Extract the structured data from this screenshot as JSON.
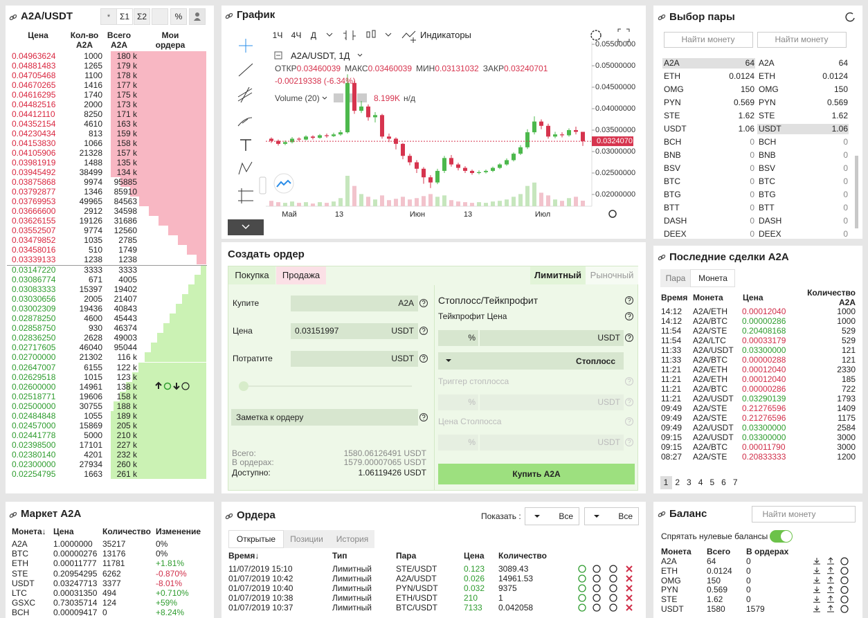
{
  "order_book": {
    "title": "A2A/USDT",
    "tabs": [
      "Σ1",
      "Σ2",
      "%"
    ],
    "headers": [
      "Цена",
      "Кол-во A2A",
      "Всего A2A",
      "Мои ордера"
    ],
    "ask_color": "#d9263f",
    "bid_color": "#2e9c2e",
    "asks": [
      [
        "0.04963624",
        "1000",
        "180 k"
      ],
      [
        "0.04881483",
        "1265",
        "179 k"
      ],
      [
        "0.04705468",
        "1100",
        "178 k"
      ],
      [
        "0.04670265",
        "1416",
        "177 k"
      ],
      [
        "0.04616295",
        "1740",
        "175 k"
      ],
      [
        "0.04482516",
        "2000",
        "173 k"
      ],
      [
        "0.04412110",
        "8250",
        "171 k"
      ],
      [
        "0.04352154",
        "4610",
        "163 k"
      ],
      [
        "0.04230434",
        "813",
        "159 k"
      ],
      [
        "0.04153830",
        "1066",
        "158 k"
      ],
      [
        "0.04105906",
        "21328",
        "157 k"
      ],
      [
        "0.03981919",
        "1488",
        "135 k"
      ],
      [
        "0.03945492",
        "38499",
        "134 k"
      ],
      [
        "0.03875868",
        "9974",
        "95885"
      ],
      [
        "0.03792877",
        "1346",
        "85910"
      ],
      [
        "0.03769953",
        "49965",
        "84563"
      ],
      [
        "0.03666600",
        "2912",
        "34598"
      ],
      [
        "0.03626155",
        "19126",
        "31686"
      ],
      [
        "0.03552507",
        "9774",
        "12560"
      ],
      [
        "0.03479852",
        "1035",
        "2785"
      ],
      [
        "0.03458016",
        "510",
        "1749"
      ],
      [
        "0.03339133",
        "1238",
        "1238"
      ]
    ],
    "bids": [
      [
        "0.03147220",
        "3333",
        "3333"
      ],
      [
        "0.03086774",
        "671",
        "4005"
      ],
      [
        "0.03083333",
        "15397",
        "19402"
      ],
      [
        "0.03030656",
        "2005",
        "21407"
      ],
      [
        "0.03002309",
        "19436",
        "40843"
      ],
      [
        "0.02878250",
        "4600",
        "45443"
      ],
      [
        "0.02858750",
        "930",
        "46374"
      ],
      [
        "0.02836250",
        "2628",
        "49003"
      ],
      [
        "0.02717605",
        "46040",
        "95044"
      ],
      [
        "0.02700000",
        "21302",
        "116 k"
      ],
      [
        "0.02647007",
        "6155",
        "122 k"
      ],
      [
        "0.02629518",
        "1015",
        "123 k"
      ],
      [
        "0.02600000",
        "14961",
        "138 k"
      ],
      [
        "0.02518771",
        "19606",
        "158 k"
      ],
      [
        "0.02500000",
        "30755",
        "188 k"
      ],
      [
        "0.02484848",
        "1055",
        "189 k"
      ],
      [
        "0.02457000",
        "15869",
        "205 k"
      ],
      [
        "0.02441778",
        "5000",
        "210 k"
      ],
      [
        "0.02398500",
        "17101",
        "227 k"
      ],
      [
        "0.02380140",
        "4201",
        "232 k"
      ],
      [
        "0.02300000",
        "27934",
        "260 k"
      ],
      [
        "0.02254795",
        "1663",
        "261 k"
      ]
    ]
  },
  "chart": {
    "title": "График",
    "intervals": [
      "1Ч",
      "4Ч",
      "Д"
    ],
    "indicators": "Индикаторы",
    "symbol": "A2A/USDT, 1Д",
    "ohlc_labels": [
      "ОТКР",
      "МАКС",
      "МИН",
      "ЗАКР"
    ],
    "ohlc_values": [
      "0.03460039",
      "0.03460039",
      "0.03131032",
      "0.03240701"
    ],
    "change": "-0.00219338 (-6.34%)",
    "volume_label": "Volume (20)",
    "volume_value": "8.199K",
    "volume_na": "н/д",
    "ylim": [
      0.01726,
      0.05565
    ],
    "yticks": [
      {
        "value": 0.055,
        "label": "0.05500000"
      },
      {
        "value": 0.05,
        "label": "0.05000000"
      },
      {
        "value": 0.045,
        "label": "0.04500000"
      },
      {
        "value": 0.04,
        "label": "0.04000000"
      },
      {
        "value": 0.035,
        "label": "0.03500000"
      },
      {
        "value": 0.03,
        "label": "0.03000000"
      },
      {
        "value": 0.025,
        "label": "0.02500000"
      },
      {
        "value": 0.02,
        "label": "0.02000000"
      }
    ],
    "last_price": {
      "value": 0.03240701,
      "label": "0.03240701"
    },
    "x_labels": [
      "Май",
      "13",
      "Июн",
      "13",
      "Июл"
    ],
    "up_color": "#4cb84c",
    "down_color": "#d6344e",
    "candles": [
      [
        0.033,
        0.0333,
        0.032,
        0.0325,
        8
      ],
      [
        0.0325,
        0.0328,
        0.0314,
        0.0318,
        6
      ],
      [
        0.0318,
        0.0326,
        0.0315,
        0.0322,
        5
      ],
      [
        0.0322,
        0.0334,
        0.0319,
        0.033,
        7
      ],
      [
        0.033,
        0.0333,
        0.0324,
        0.0328,
        5
      ],
      [
        0.0328,
        0.0338,
        0.0326,
        0.0335,
        6
      ],
      [
        0.0335,
        0.0338,
        0.0328,
        0.0332,
        4
      ],
      [
        0.0332,
        0.0341,
        0.033,
        0.0338,
        6
      ],
      [
        0.0338,
        0.0342,
        0.0332,
        0.0336,
        5
      ],
      [
        0.0336,
        0.0344,
        0.0334,
        0.034,
        7
      ],
      [
        0.034,
        0.035,
        0.0337,
        0.0345,
        12
      ],
      [
        0.0345,
        0.048,
        0.0342,
        0.046,
        45
      ],
      [
        0.046,
        0.0465,
        0.0388,
        0.0395,
        30
      ],
      [
        0.0395,
        0.0418,
        0.039,
        0.0405,
        18
      ],
      [
        0.0405,
        0.041,
        0.0372,
        0.038,
        14
      ],
      [
        0.038,
        0.0392,
        0.0368,
        0.0385,
        10
      ],
      [
        0.0385,
        0.0388,
        0.033,
        0.0335,
        16
      ],
      [
        0.0335,
        0.0342,
        0.0322,
        0.033,
        9
      ],
      [
        0.033,
        0.0333,
        0.0305,
        0.0318,
        11
      ],
      [
        0.0318,
        0.032,
        0.0282,
        0.029,
        14
      ],
      [
        0.029,
        0.0295,
        0.0268,
        0.0275,
        10
      ],
      [
        0.0275,
        0.028,
        0.025,
        0.026,
        12
      ],
      [
        0.026,
        0.0264,
        0.0225,
        0.024,
        15
      ],
      [
        0.024,
        0.0245,
        0.0215,
        0.0228,
        18
      ],
      [
        0.0228,
        0.026,
        0.0224,
        0.0255,
        14
      ],
      [
        0.0255,
        0.029,
        0.025,
        0.0285,
        16
      ],
      [
        0.0285,
        0.0292,
        0.0265,
        0.027,
        9
      ],
      [
        0.027,
        0.0274,
        0.0256,
        0.0262,
        7
      ],
      [
        0.0262,
        0.0266,
        0.025,
        0.0255,
        6
      ],
      [
        0.0255,
        0.0258,
        0.0246,
        0.025,
        5
      ],
      [
        0.025,
        0.0256,
        0.0247,
        0.0252,
        6
      ],
      [
        0.0252,
        0.0258,
        0.0249,
        0.0255,
        5
      ],
      [
        0.0255,
        0.0265,
        0.0252,
        0.0262,
        7
      ],
      [
        0.0262,
        0.0273,
        0.0259,
        0.027,
        8
      ],
      [
        0.027,
        0.0284,
        0.0267,
        0.028,
        10
      ],
      [
        0.028,
        0.0298,
        0.0277,
        0.0295,
        14
      ],
      [
        0.0295,
        0.0315,
        0.0292,
        0.031,
        18
      ],
      [
        0.031,
        0.0352,
        0.0306,
        0.0345,
        30
      ],
      [
        0.0345,
        0.0382,
        0.034,
        0.037,
        35
      ],
      [
        0.037,
        0.0375,
        0.0352,
        0.036,
        20
      ],
      [
        0.036,
        0.0365,
        0.033,
        0.0335,
        16
      ],
      [
        0.0335,
        0.0346,
        0.0331,
        0.034,
        10
      ],
      [
        0.034,
        0.0345,
        0.0333,
        0.0338,
        8
      ],
      [
        0.0338,
        0.0354,
        0.0335,
        0.035,
        12
      ],
      [
        0.035,
        0.0358,
        0.034,
        0.0346,
        14
      ],
      [
        0.03460039,
        0.03460039,
        0.03131032,
        0.03240701,
        8.199
      ]
    ]
  },
  "create_order": {
    "title": "Создать ордер",
    "tabs": [
      "Покупка",
      "Продажа"
    ],
    "modes": [
      "Лимитный",
      "Рыночный"
    ],
    "buy_label": "Купите",
    "buy_unit": "A2A",
    "price_label": "Цена",
    "price_value": "0.03151997",
    "unit": "USDT",
    "spend_label": "Потратите",
    "note": "Заметка к ордеру",
    "totals": [
      [
        "Всего:",
        "1580.06126491 USDT"
      ],
      [
        "В ордерах:",
        "1579.00007065 USDT"
      ],
      [
        "Доступно:",
        "1.06119426 USDT"
      ]
    ],
    "sltp_title": "Стоплосс/Тейкпрофит",
    "tp_label": "Тейкпрофит Цена",
    "pct": "%",
    "stoploss": "Стоплосс",
    "trigger_label": "Триггер стоплосса",
    "sl_price_label": "Цена Столпосса",
    "submit": "Купить A2A"
  },
  "pairs": {
    "title": "Выбор пары",
    "search": "Найти монету",
    "coins": [
      [
        "A2A",
        "64"
      ],
      [
        "ETH",
        "0.0124"
      ],
      [
        "OMG",
        "150"
      ],
      [
        "PYN",
        "0.569"
      ],
      [
        "STE",
        "1.62"
      ],
      [
        "USDT",
        "1.06"
      ],
      [
        "BCH",
        "0"
      ],
      [
        "BNB",
        "0"
      ],
      [
        "BSV",
        "0"
      ],
      [
        "BTC",
        "0"
      ],
      [
        "BTG",
        "0"
      ],
      [
        "BTT",
        "0"
      ],
      [
        "DASH",
        "0"
      ],
      [
        "DEEX",
        "0"
      ]
    ]
  },
  "trades": {
    "title": "Последние сделки A2A",
    "tabs": [
      "Пара",
      "Монета"
    ],
    "headers": [
      "Время",
      "Монета",
      "Цена",
      "Количество A2A"
    ],
    "rows": [
      [
        "14:12",
        "A2A/ETH",
        "0.00012040",
        "1000",
        "#d02e49"
      ],
      [
        "14:12",
        "A2A/BTC",
        "0.00000286",
        "1000",
        "#2e9c2e"
      ],
      [
        "11:54",
        "A2A/STE",
        "0.20408168",
        "529",
        "#2e9c2e"
      ],
      [
        "11:54",
        "A2A/LTC",
        "0.00033179",
        "529",
        "#d02e49"
      ],
      [
        "11:33",
        "A2A/USDT",
        "0.03300000",
        "121",
        "#2e9c2e"
      ],
      [
        "11:33",
        "A2A/BTC",
        "0.00000288",
        "121",
        "#d02e49"
      ],
      [
        "11:21",
        "A2A/ETH",
        "0.00012040",
        "2330",
        "#d02e49"
      ],
      [
        "11:21",
        "A2A/ETH",
        "0.00012040",
        "185",
        "#d02e49"
      ],
      [
        "11:21",
        "A2A/BTC",
        "0.00000286",
        "722",
        "#d02e49"
      ],
      [
        "11:21",
        "A2A/USDT",
        "0.03290139",
        "1793",
        "#2e9c2e"
      ],
      [
        "09:49",
        "A2A/STE",
        "0.21276596",
        "1409",
        "#d02e49"
      ],
      [
        "09:49",
        "A2A/STE",
        "0.21276596",
        "1175",
        "#d02e49"
      ],
      [
        "09:49",
        "A2A/USDT",
        "0.03300000",
        "2584",
        "#2e9c2e"
      ],
      [
        "09:15",
        "A2A/USDT",
        "0.03300000",
        "3000",
        "#2e9c2e"
      ],
      [
        "09:15",
        "A2A/BTC",
        "0.00011790",
        "3000",
        "#d02e49"
      ],
      [
        "08:27",
        "A2A/STE",
        "0.20833333",
        "1200",
        "#d02e49"
      ]
    ],
    "pages": [
      "1",
      "2",
      "3",
      "4",
      "5",
      "6",
      "7"
    ]
  },
  "market": {
    "title": "Маркет A2A",
    "headers": [
      "Монета↓",
      "Цена",
      "Количество",
      "Изменение"
    ],
    "rows": [
      [
        "A2A",
        "1.0000000",
        "35217",
        "0%",
        "#222222"
      ],
      [
        "BTC",
        "0.00000276",
        "13176",
        "0%",
        "#222222"
      ],
      [
        "ETH",
        "0.00011777",
        "11781",
        "+1.81%",
        "#2e9c2e"
      ],
      [
        "STE",
        "0.20954295",
        "6262",
        "-0.870%",
        "#d02e49"
      ],
      [
        "USDT",
        "0.03247713",
        "3377",
        "-8.01%",
        "#d02e49"
      ],
      [
        "LTC",
        "0.00031350",
        "494",
        "+0.710%",
        "#2e9c2e"
      ],
      [
        "GSXC",
        "0.73035714",
        "124",
        "+59%",
        "#2e9c2e"
      ],
      [
        "BCH",
        "0.00009417",
        "0",
        "+8.24%",
        "#2e9c2e"
      ]
    ]
  },
  "orders": {
    "title": "Ордера",
    "show_label": "Показать :",
    "filters": [
      "Все",
      "Все"
    ],
    "tabs": [
      "Открытые",
      "Позиции",
      "История"
    ],
    "headers": [
      "Время↓",
      "Тип",
      "Пара",
      "Цена",
      "Количество"
    ],
    "rows": [
      [
        "11/07/2019 15:10",
        "Лимитный",
        "STE/USDT",
        "0.123",
        "3089.43"
      ],
      [
        "01/07/2019 10:42",
        "Лимитный",
        "A2A/USDT",
        "0.026",
        "14961.53"
      ],
      [
        "01/07/2019 10:40",
        "Лимитный",
        "PYN/USDT",
        "0.032",
        "9375"
      ],
      [
        "01/07/2019 10:38",
        "Лимитный",
        "ETH/USDT",
        "210",
        "1"
      ],
      [
        "01/07/2019 10:37",
        "Лимитный",
        "BTC/USDT",
        "7133",
        "0.042058"
      ]
    ]
  },
  "balance": {
    "title": "Баланс",
    "search": "Найти монету",
    "hide_zero": "Спрятать нулевые балансы",
    "headers": [
      "Монета",
      "Всего",
      "В ордерах"
    ],
    "rows": [
      [
        "A2A",
        "64",
        "0"
      ],
      [
        "ETH",
        "0.0124",
        "0"
      ],
      [
        "OMG",
        "150",
        "0"
      ],
      [
        "PYN",
        "0.569",
        "0"
      ],
      [
        "STE",
        "1.62",
        "0"
      ],
      [
        "USDT",
        "1580",
        "1579"
      ]
    ]
  }
}
